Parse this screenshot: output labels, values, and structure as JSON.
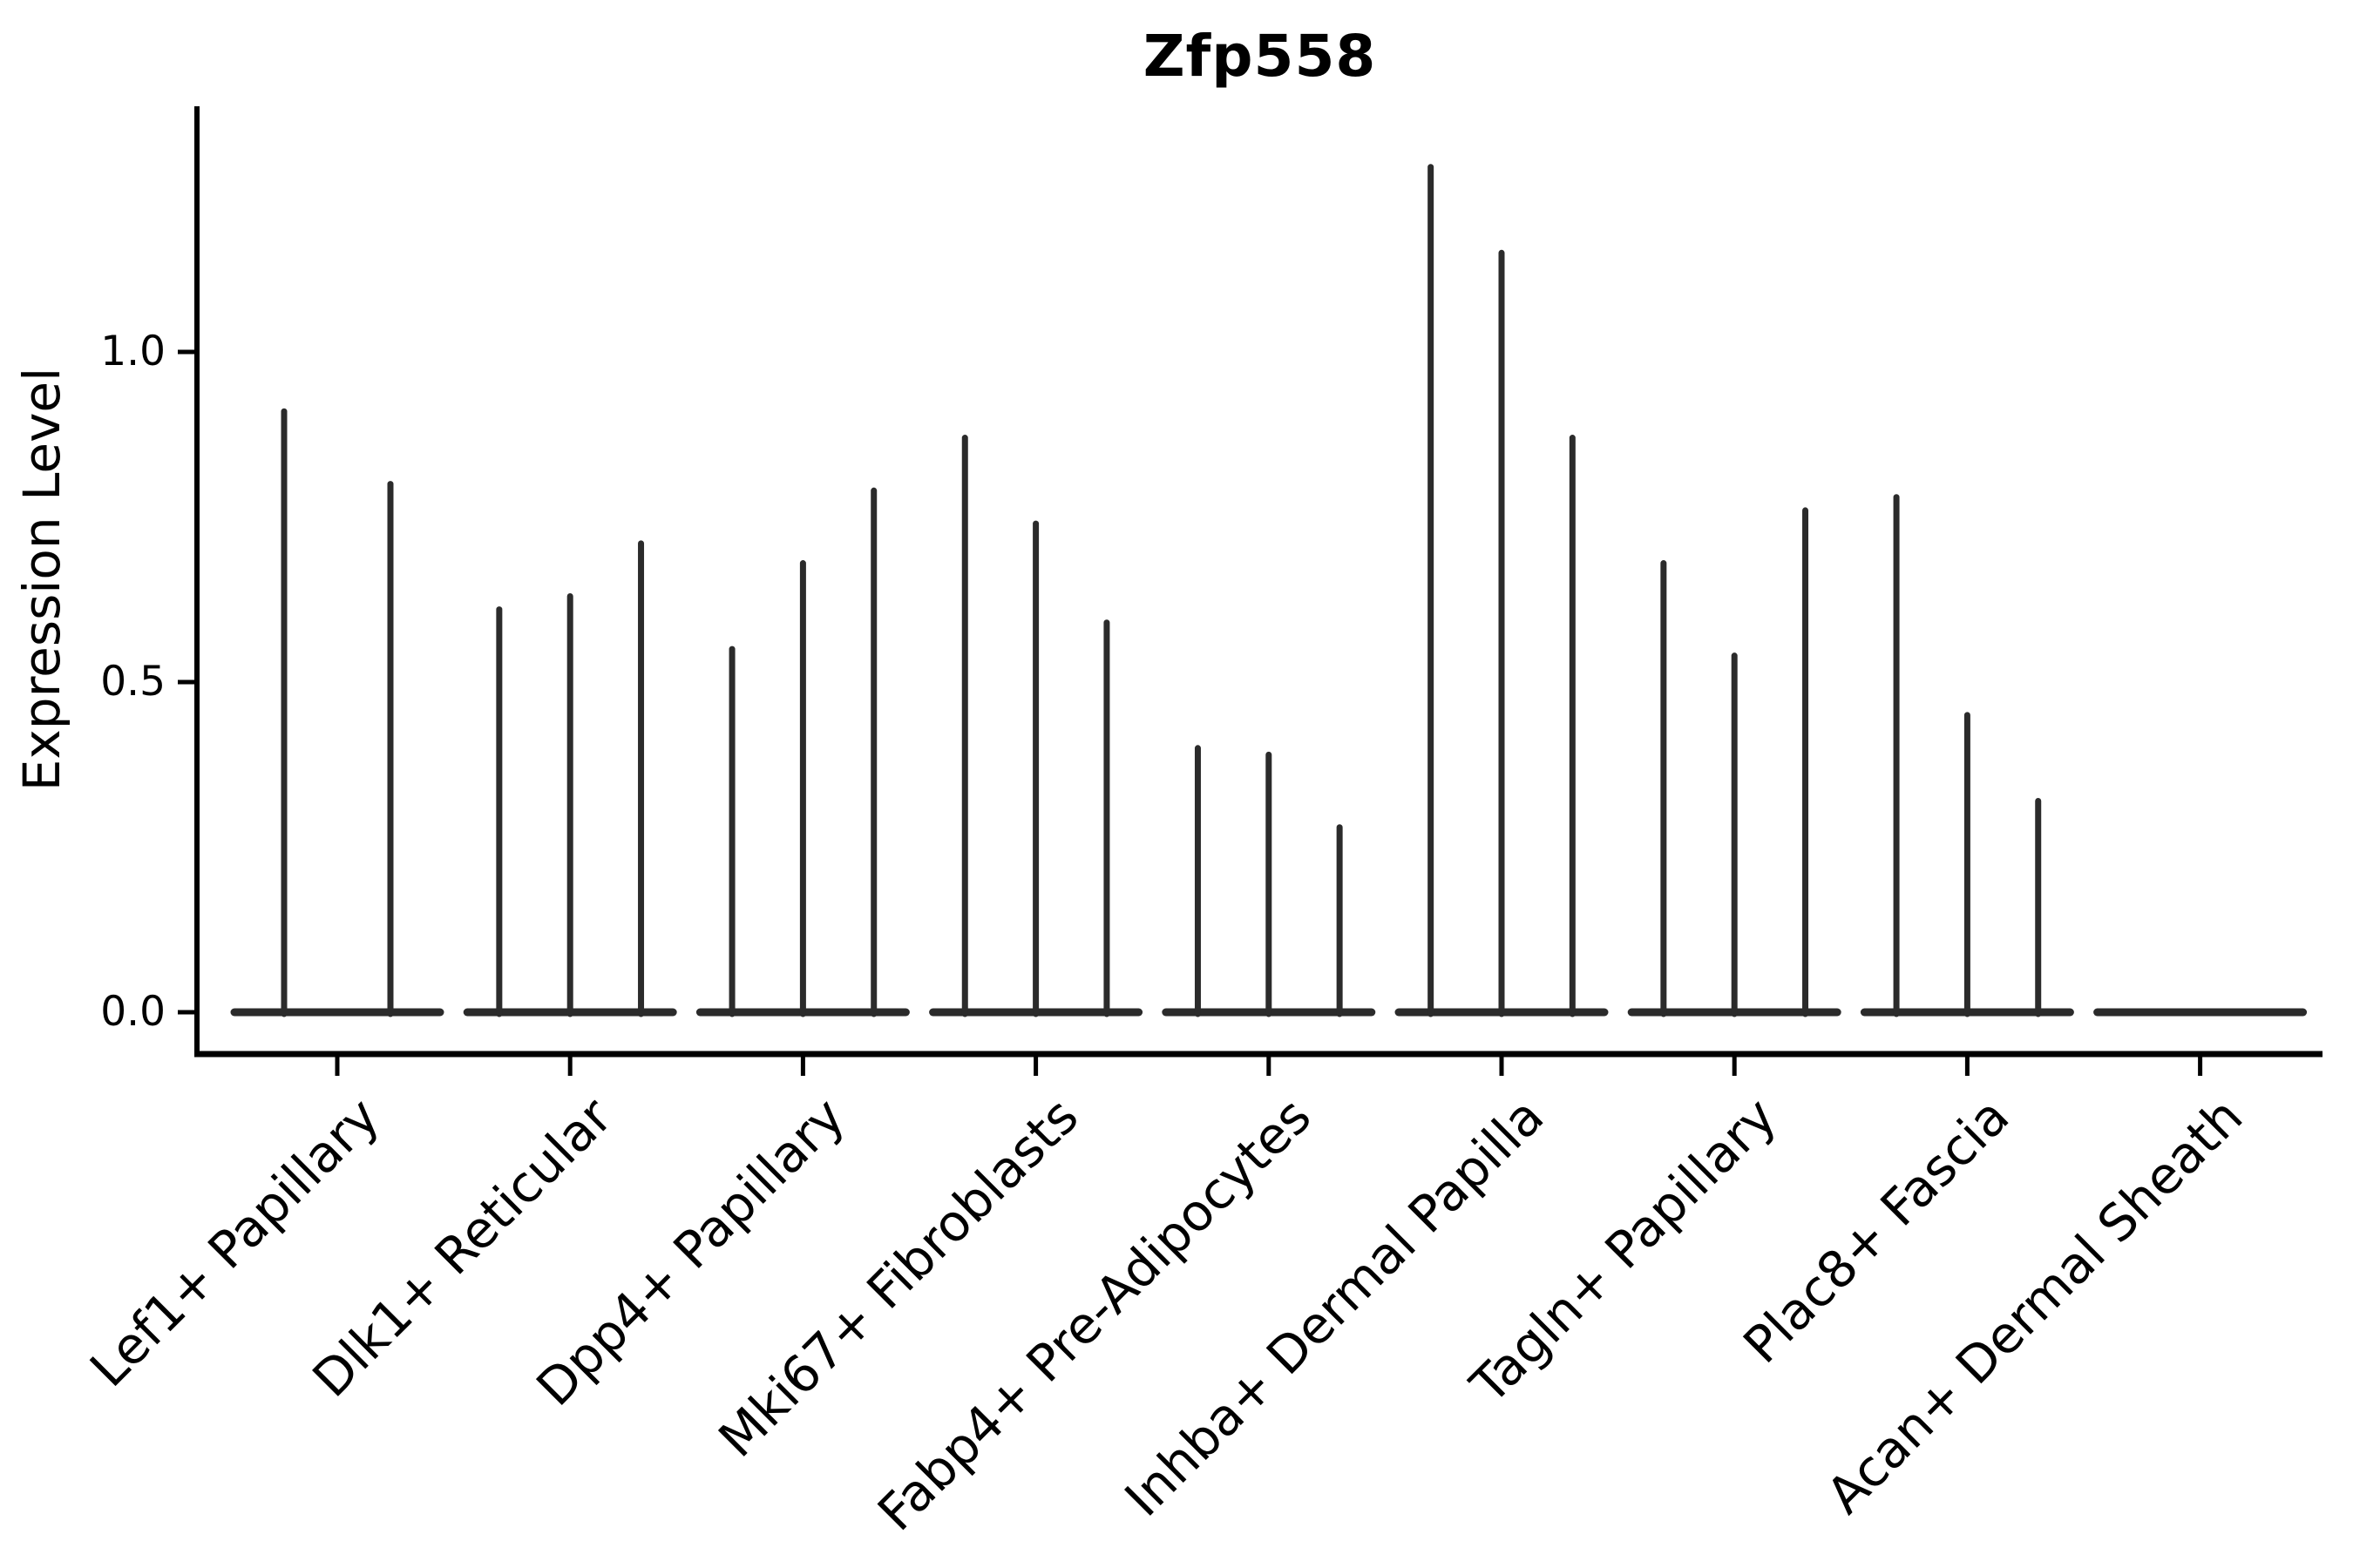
{
  "figure": {
    "background_color": "#ffffff",
    "ink_color": "#000000",
    "violin_color": "#2b2b2b"
  },
  "chart_data": {
    "type": "violin",
    "title": "Zfp558",
    "xlabel": "",
    "ylabel": "Expression Level",
    "ylim": [
      0.0,
      1.37
    ],
    "yticks": [
      "0.0",
      "0.5",
      "1.0"
    ],
    "ytick_values": [
      0.0,
      0.5,
      1.0
    ],
    "grid": false,
    "legend": null,
    "categories": [
      "Lef1+ Papillary",
      "Dlk1+ Reticular",
      "Dpp4+ Papillary",
      "Mki67+ Fibroblasts",
      "Fabp4+ Pre-Adipocytes",
      "Inhba+ Dermal Papilla",
      "Tagln+ Papillary",
      "Plac8+ Fascia",
      "Acan+ Dermal Sheath"
    ],
    "groups": [
      {
        "category": "Lef1+ Papillary",
        "violin_peaks": [
          0.91,
          0.8
        ]
      },
      {
        "category": "Dlk1+ Reticular",
        "violin_peaks": [
          0.61,
          0.63,
          0.71
        ]
      },
      {
        "category": "Dpp4+ Papillary",
        "violin_peaks": [
          0.55,
          0.68,
          0.79
        ]
      },
      {
        "category": "Mki67+ Fibroblasts",
        "violin_peaks": [
          0.87,
          0.74,
          0.59
        ]
      },
      {
        "category": "Fabp4+ Pre-Adipocytes",
        "violin_peaks": [
          0.4,
          0.39,
          0.28
        ]
      },
      {
        "category": "Inhba+ Dermal Papilla",
        "violin_peaks": [
          1.28,
          1.15,
          0.87
        ]
      },
      {
        "category": "Tagln+ Papillary",
        "violin_peaks": [
          0.68,
          0.54,
          0.76
        ]
      },
      {
        "category": "Plac8+ Fascia",
        "violin_peaks": [
          0.78,
          0.45,
          0.32
        ]
      },
      {
        "category": "Acan+ Dermal Sheath",
        "violin_peaks": []
      }
    ]
  }
}
